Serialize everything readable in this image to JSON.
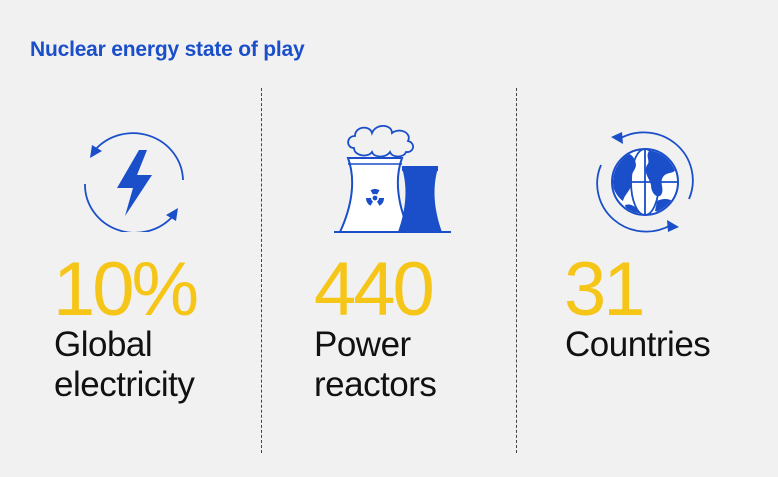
{
  "title": "Nuclear energy state of play",
  "stats": [
    {
      "icon": "lightning-cycle-icon",
      "value": "10%",
      "label_line1": "Global",
      "label_line2": "electricity"
    },
    {
      "icon": "nuclear-plant-icon",
      "value": "440",
      "label_line1": "Power",
      "label_line2": "reactors"
    },
    {
      "icon": "globe-cycle-icon",
      "value": "31",
      "label_line1": "Countries",
      "label_line2": ""
    }
  ],
  "colors": {
    "title": "#1a4fc9",
    "icon": "#1a4fc9",
    "stat": "#f5c518",
    "text": "#111111",
    "background": "#f1f1f2"
  }
}
